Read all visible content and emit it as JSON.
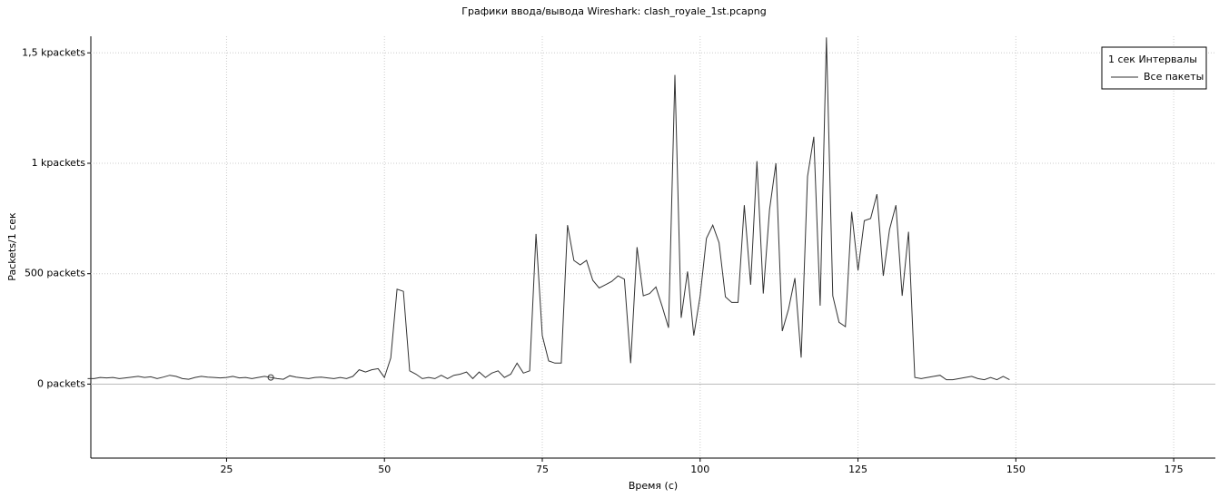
{
  "chart_data": {
    "type": "line",
    "title": "Графики ввода/вывода Wireshark: clash_royale_1st.pcapng",
    "x_label": "Время (с)",
    "y_label": "Packets/1 сек",
    "legend_title": "1 сек Интервалы",
    "legend": "top-right",
    "grid": true,
    "xlim": [
      3.5,
      181.6
    ],
    "xticks": [
      25,
      50,
      75,
      100,
      125,
      150,
      175
    ],
    "ylim": [
      -335,
      1575
    ],
    "yticks": [
      {
        "value": 0,
        "label": "0 packets"
      },
      {
        "value": 500,
        "label": "500 packets"
      },
      {
        "value": 1000,
        "label": "1 kpackets"
      },
      {
        "value": 1500,
        "label": "1,5 kpackets"
      }
    ],
    "marker_x": 32,
    "x": [
      3,
      4,
      5,
      6,
      7,
      8,
      9,
      10,
      11,
      12,
      13,
      14,
      15,
      16,
      17,
      18,
      19,
      20,
      21,
      22,
      23,
      24,
      25,
      26,
      27,
      28,
      29,
      30,
      31,
      32,
      33,
      34,
      35,
      36,
      37,
      38,
      39,
      40,
      41,
      42,
      43,
      44,
      45,
      46,
      47,
      48,
      49,
      50,
      51,
      52,
      53,
      54,
      55,
      56,
      57,
      58,
      59,
      60,
      61,
      62,
      63,
      64,
      65,
      66,
      67,
      68,
      69,
      70,
      71,
      72,
      73,
      74,
      75,
      76,
      77,
      78,
      79,
      80,
      81,
      82,
      83,
      84,
      85,
      86,
      87,
      88,
      89,
      90,
      91,
      92,
      93,
      94,
      95,
      96,
      97,
      98,
      99,
      100,
      101,
      102,
      103,
      104,
      105,
      106,
      107,
      108,
      109,
      110,
      111,
      112,
      113,
      114,
      115,
      116,
      117,
      118,
      119,
      120,
      121,
      122,
      123,
      124,
      125,
      126,
      127,
      128,
      129,
      130,
      131,
      132,
      133,
      134,
      135,
      136,
      137,
      138,
      139,
      140,
      141,
      142,
      143,
      144,
      145,
      146,
      147,
      148,
      149
    ],
    "series": [
      {
        "name": "Все пакеты",
        "color": "#333333",
        "values": [
          25,
          25,
          30,
          28,
          30,
          25,
          28,
          32,
          35,
          30,
          33,
          25,
          32,
          40,
          35,
          25,
          22,
          30,
          35,
          32,
          30,
          28,
          30,
          35,
          28,
          30,
          25,
          30,
          35,
          30,
          25,
          22,
          38,
          32,
          28,
          25,
          30,
          32,
          28,
          25,
          30,
          25,
          35,
          65,
          55,
          65,
          70,
          30,
          118,
          430,
          420,
          60,
          45,
          25,
          30,
          25,
          40,
          25,
          40,
          45,
          55,
          25,
          55,
          30,
          50,
          60,
          30,
          45,
          95,
          50,
          60,
          680,
          220,
          105,
          95,
          95,
          720,
          560,
          540,
          560,
          470,
          435,
          450,
          465,
          490,
          475,
          95,
          620,
          400,
          410,
          440,
          350,
          255,
          1400,
          300,
          510,
          220,
          400,
          660,
          720,
          640,
          395,
          370,
          370,
          810,
          450,
          1010,
          410,
          790,
          1000,
          240,
          340,
          480,
          120,
          940,
          1120,
          355,
          1570,
          400,
          280,
          260,
          780,
          515,
          740,
          750,
          860,
          490,
          700,
          810,
          400,
          690,
          30,
          25,
          30,
          35,
          40,
          20,
          20,
          25,
          30,
          35,
          25,
          20,
          30,
          20,
          35,
          20
        ]
      }
    ]
  }
}
